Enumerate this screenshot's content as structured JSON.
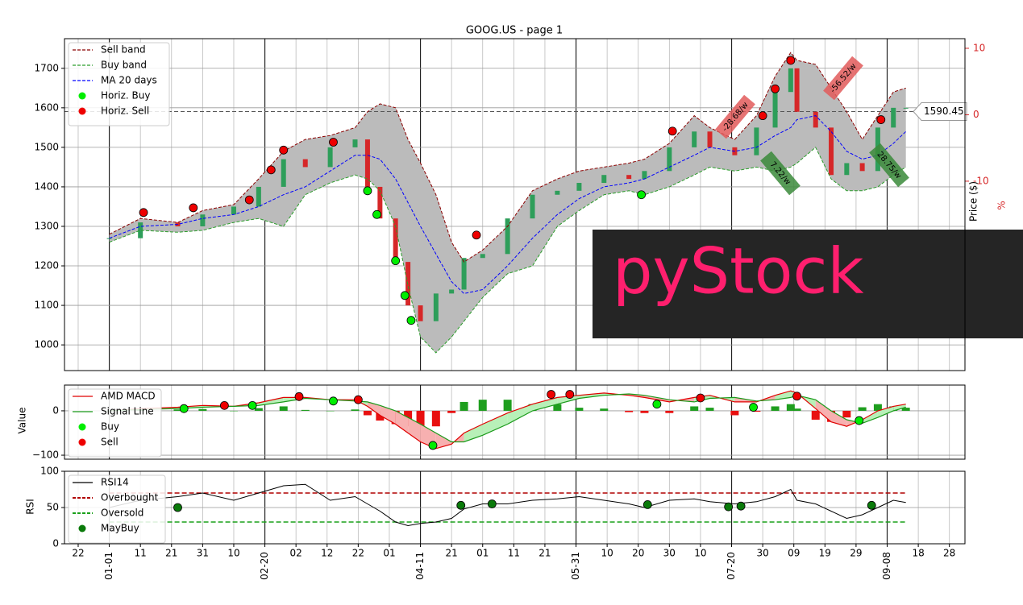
{
  "chart_data": [
    {
      "type": "candlestick",
      "title": "GOOG.US - page 1",
      "ylabel": "Price ($)",
      "y2label": "%",
      "ylim": [
        935,
        1775
      ],
      "yticks": [
        1000,
        1100,
        1200,
        1300,
        1400,
        1500,
        1600,
        1700
      ],
      "y2lim": [
        -38.5,
        11.45
      ],
      "y2ticks": [
        -10,
        0,
        10
      ],
      "y2color": "#d62728",
      "band_fill": "#bbbbbb",
      "up_color": "#2e9e5a",
      "down_color": "#d62728",
      "x": [
        0,
        10,
        22,
        30,
        40,
        48,
        56,
        63,
        71,
        79,
        83,
        87,
        92,
        96,
        100,
        105,
        110,
        114,
        120,
        128,
        136,
        144,
        151,
        159,
        167,
        172,
        180,
        188,
        193,
        201,
        208,
        214,
        219,
        221,
        227,
        232,
        237,
        242,
        247,
        252,
        256
      ],
      "close": [
        1270,
        1310,
        1300,
        1330,
        1350,
        1400,
        1470,
        1450,
        1500,
        1520,
        1400,
        1320,
        1210,
        1100,
        1060,
        1130,
        1140,
        1220,
        1230,
        1320,
        1380,
        1390,
        1410,
        1430,
        1420,
        1440,
        1500,
        1540,
        1500,
        1480,
        1550,
        1640,
        1700,
        1590,
        1550,
        1430,
        1460,
        1440,
        1550,
        1600,
        1600
      ],
      "series": [
        {
          "name": "Sell band",
          "color": "#8b0000",
          "style": "dashed",
          "values": [
            1280,
            1320,
            1310,
            1340,
            1355,
            1420,
            1490,
            1520,
            1530,
            1550,
            1590,
            1610,
            1600,
            1520,
            1460,
            1380,
            1260,
            1210,
            1240,
            1300,
            1390,
            1420,
            1440,
            1450,
            1460,
            1470,
            1510,
            1580,
            1550,
            1520,
            1580,
            1680,
            1740,
            1720,
            1710,
            1650,
            1590,
            1520,
            1580,
            1640,
            1650
          ]
        },
        {
          "name": "Buy band",
          "color": "#2a9d2a",
          "style": "dashed",
          "values": [
            1260,
            1290,
            1285,
            1290,
            1310,
            1320,
            1300,
            1380,
            1410,
            1430,
            1420,
            1390,
            1300,
            1150,
            1020,
            980,
            1020,
            1060,
            1120,
            1180,
            1200,
            1300,
            1340,
            1380,
            1390,
            1380,
            1400,
            1430,
            1450,
            1440,
            1450,
            1440,
            1450,
            1460,
            1500,
            1420,
            1390,
            1390,
            1400,
            1430,
            1450
          ]
        },
        {
          "name": "MA 20 days",
          "color": "#0000ff",
          "style": "dashed",
          "values": [
            1270,
            1300,
            1305,
            1320,
            1330,
            1350,
            1380,
            1400,
            1440,
            1480,
            1480,
            1470,
            1420,
            1360,
            1300,
            1230,
            1160,
            1130,
            1140,
            1200,
            1270,
            1330,
            1370,
            1400,
            1410,
            1420,
            1450,
            1480,
            1500,
            1490,
            1500,
            1530,
            1550,
            1570,
            1580,
            1540,
            1490,
            1470,
            1480,
            1510,
            1540
          ]
        }
      ],
      "markers": [
        {
          "name": "Horiz. Buy",
          "color": "#00ee00",
          "x": [
            83,
            86,
            92,
            95,
            97,
            171
          ],
          "values": [
            1390,
            1330,
            1213,
            1125,
            1062,
            1380
          ]
        },
        {
          "name": "Horiz. Sell",
          "color": "#ee0000",
          "x": [
            11,
            27,
            45,
            52,
            56,
            72,
            118,
            181,
            210,
            214,
            219,
            248
          ],
          "values": [
            1335,
            1347,
            1367,
            1443,
            1493,
            1513,
            1278,
            1541,
            1580,
            1648,
            1720,
            1570
          ]
        }
      ],
      "last_price": {
        "value": 1590.45,
        "label": "1590.45"
      },
      "annotations": [
        "-28.68/w",
        "-56.52/w",
        "7.22/w",
        "28.75/w"
      ],
      "watermark": "pyStock"
    },
    {
      "type": "macd",
      "ylabel": "Value",
      "ylim": [
        -109,
        58
      ],
      "yticks": [
        {
          "value": -100,
          "label": "−100"
        },
        0
      ],
      "x": [
        0,
        10,
        22,
        30,
        40,
        48,
        56,
        63,
        71,
        79,
        83,
        87,
        92,
        96,
        100,
        105,
        110,
        114,
        120,
        128,
        136,
        144,
        151,
        159,
        167,
        172,
        180,
        188,
        193,
        201,
        208,
        214,
        219,
        221,
        227,
        232,
        237,
        242,
        247,
        252,
        256
      ],
      "series": [
        {
          "name": "AMD MACD",
          "color": "#e00000",
          "values": [
            0,
            5,
            8,
            12,
            10,
            18,
            30,
            30,
            25,
            25,
            10,
            -10,
            -30,
            -50,
            -70,
            -85,
            -75,
            -50,
            -30,
            -5,
            15,
            30,
            35,
            40,
            35,
            30,
            20,
            30,
            35,
            20,
            20,
            35,
            45,
            40,
            5,
            -25,
            -35,
            -20,
            0,
            10,
            15
          ]
        },
        {
          "name": "Signal Line",
          "color": "#1a9a1a",
          "values": [
            0,
            3,
            5,
            8,
            10,
            12,
            20,
            28,
            25,
            22,
            20,
            12,
            0,
            -15,
            -30,
            -50,
            -70,
            -70,
            -55,
            -30,
            0,
            15,
            28,
            35,
            38,
            35,
            25,
            20,
            28,
            30,
            22,
            25,
            30,
            35,
            25,
            0,
            -20,
            -28,
            -15,
            0,
            8
          ]
        }
      ],
      "histogram": {
        "up_color": "#1e9e1e",
        "down_color": "#e81010",
        "values": [
          0,
          2,
          3,
          4,
          0,
          6,
          10,
          2,
          0,
          3,
          -10,
          -22,
          -30,
          -35,
          -40,
          -35,
          -5,
          20,
          25,
          25,
          15,
          15,
          7,
          5,
          -3,
          -5,
          -5,
          10,
          7,
          -10,
          -2,
          10,
          15,
          5,
          -20,
          -25,
          -15,
          8,
          15,
          10,
          7
        ]
      },
      "fill_colors": [
        "#b8f0b8",
        "#f7b0b0"
      ],
      "markers": [
        {
          "name": "Buy",
          "color": "#00ee00",
          "x": [
            24,
            46,
            72,
            104,
            176,
            207,
            241
          ],
          "values": [
            5,
            12,
            22,
            -78,
            15,
            8,
            -22
          ]
        },
        {
          "name": "Sell",
          "color": "#ee0000",
          "x": [
            37,
            61,
            80,
            142,
            148,
            190,
            221
          ],
          "values": [
            12,
            32,
            25,
            37,
            37,
            29,
            33
          ]
        }
      ]
    },
    {
      "type": "line",
      "ylabel": "RSI",
      "ylim": [
        0,
        100
      ],
      "yticks": [
        0,
        50,
        100
      ],
      "xlim": [
        -14.4,
        275
      ],
      "xticks": [
        {
          "value": -10,
          "label": "22"
        },
        {
          "value": 0,
          "label": "01-01"
        },
        {
          "value": 10,
          "label": "11"
        },
        {
          "value": 20,
          "label": "21"
        },
        {
          "value": 30,
          "label": "31"
        },
        {
          "value": 40,
          "label": "10"
        },
        {
          "value": 50,
          "label": "02-20"
        },
        {
          "value": 60,
          "label": "02"
        },
        {
          "value": 70,
          "label": "12"
        },
        {
          "value": 80,
          "label": "22"
        },
        {
          "value": 90,
          "label": "01"
        },
        {
          "value": 100,
          "label": "04-11"
        },
        {
          "value": 110,
          "label": "21"
        },
        {
          "value": 120,
          "label": "01"
        },
        {
          "value": 130,
          "label": "11"
        },
        {
          "value": 140,
          "label": "21"
        },
        {
          "value": 150,
          "label": "05-31"
        },
        {
          "value": 160,
          "label": "10"
        },
        {
          "value": 170,
          "label": "20"
        },
        {
          "value": 180,
          "label": "30"
        },
        {
          "value": 190,
          "label": "10"
        },
        {
          "value": 200,
          "label": "07-20"
        },
        {
          "value": 210,
          "label": "30"
        },
        {
          "value": 220,
          "label": "09"
        },
        {
          "value": 230,
          "label": "19"
        },
        {
          "value": 240,
          "label": "29"
        },
        {
          "value": 250,
          "label": "09-08"
        },
        {
          "value": 260,
          "label": "18"
        },
        {
          "value": 270,
          "label": "28"
        }
      ],
      "x": [
        0,
        10,
        22,
        30,
        40,
        48,
        56,
        63,
        71,
        79,
        83,
        87,
        92,
        96,
        100,
        105,
        110,
        114,
        120,
        128,
        136,
        144,
        151,
        159,
        167,
        172,
        180,
        188,
        193,
        201,
        208,
        214,
        219,
        221,
        227,
        232,
        237,
        242,
        247,
        252,
        256
      ],
      "series": [
        {
          "name": "RSI14",
          "color": "#000000",
          "values": [
            50,
            60,
            65,
            70,
            60,
            70,
            80,
            82,
            60,
            65,
            55,
            45,
            30,
            25,
            28,
            30,
            35,
            48,
            55,
            55,
            60,
            62,
            65,
            60,
            55,
            50,
            60,
            62,
            58,
            55,
            58,
            65,
            75,
            60,
            55,
            45,
            35,
            40,
            50,
            60,
            57
          ]
        }
      ],
      "levels": [
        {
          "name": "Overbought",
          "color": "#b00000",
          "value": 70
        },
        {
          "name": "Oversold",
          "color": "#1aa01a",
          "value": 30
        }
      ],
      "markers": [
        {
          "name": "MayBuy",
          "color": "#0a7a0a",
          "x": [
            22,
            113,
            123,
            173,
            199,
            203,
            245
          ],
          "values": [
            50,
            53,
            55,
            54,
            51,
            52,
            53
          ]
        }
      ]
    }
  ]
}
